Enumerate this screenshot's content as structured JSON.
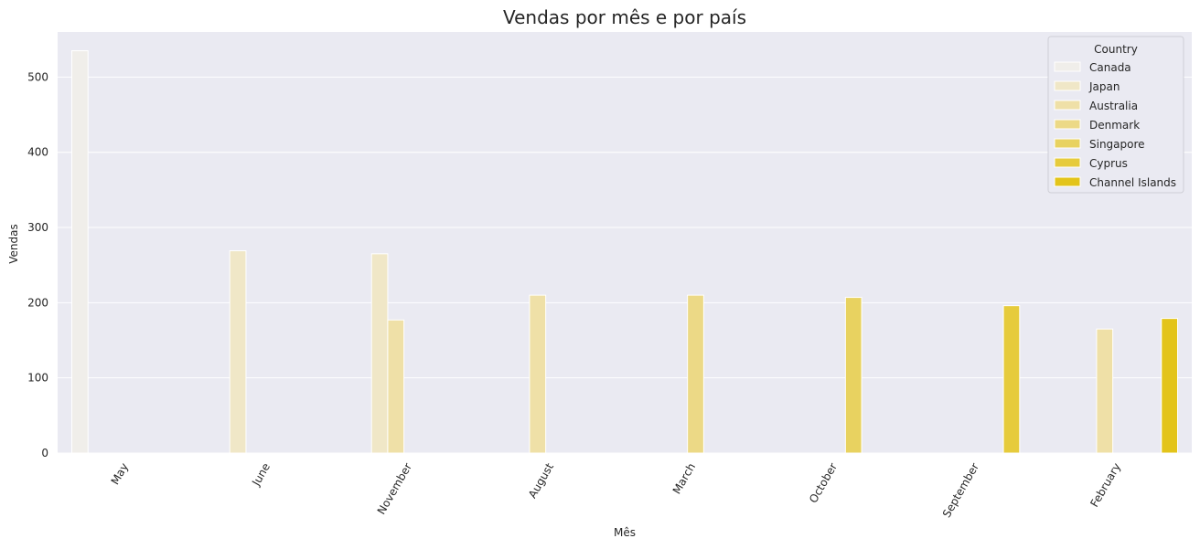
{
  "chart_data": {
    "type": "bar",
    "title": "Vendas por mês e por país",
    "xlabel": "Mês",
    "ylabel": "Vendas",
    "ylim": [
      0,
      560
    ],
    "yticks": [
      0,
      100,
      200,
      300,
      400,
      500
    ],
    "grid": true,
    "categories": [
      "May",
      "June",
      "November",
      "August",
      "March",
      "October",
      "September",
      "February"
    ],
    "legend": {
      "title": "Country",
      "placement": "top-right"
    },
    "series": [
      {
        "name": "Canada",
        "color": "#f0eeea",
        "values": [
          535,
          null,
          null,
          null,
          null,
          null,
          null,
          null
        ]
      },
      {
        "name": "Japan",
        "color": "#f0e7c7",
        "values": [
          null,
          269,
          265,
          null,
          null,
          null,
          null,
          null
        ]
      },
      {
        "name": "Australia",
        "color": "#efe0a7",
        "values": [
          null,
          null,
          177,
          210,
          null,
          null,
          null,
          165
        ]
      },
      {
        "name": "Denmark",
        "color": "#ecd986",
        "values": [
          null,
          null,
          null,
          null,
          210,
          null,
          null,
          null
        ]
      },
      {
        "name": "Singapore",
        "color": "#e8d260",
        "values": [
          null,
          null,
          null,
          null,
          null,
          207,
          null,
          null
        ]
      },
      {
        "name": "Cyprus",
        "color": "#e6cb3c",
        "values": [
          null,
          null,
          null,
          null,
          null,
          null,
          196,
          null
        ]
      },
      {
        "name": "Channel Islands",
        "color": "#e3c41a",
        "values": [
          null,
          null,
          null,
          null,
          null,
          null,
          null,
          179
        ]
      }
    ]
  }
}
